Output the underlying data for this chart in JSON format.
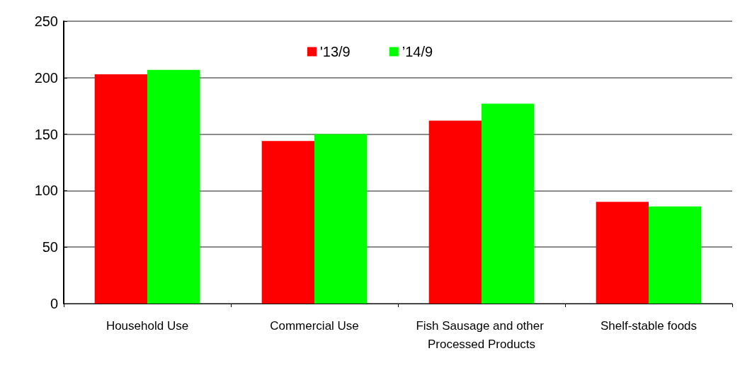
{
  "chart_data": {
    "type": "bar",
    "categories": [
      "Household Use",
      "Commercial Use",
      "Fish Sausage and other Processed Products",
      "Shelf-stable foods"
    ],
    "series": [
      {
        "name": "'13/9",
        "color": "#ff0000",
        "values": [
          203,
          144,
          162,
          90
        ]
      },
      {
        "name": "’14/9",
        "color": "#00ff00",
        "values": [
          207,
          150,
          177,
          86
        ]
      }
    ],
    "ylim": [
      0,
      250
    ],
    "yticks": [
      0,
      50,
      100,
      150,
      200,
      250
    ],
    "grid": "y",
    "legend": "top"
  }
}
